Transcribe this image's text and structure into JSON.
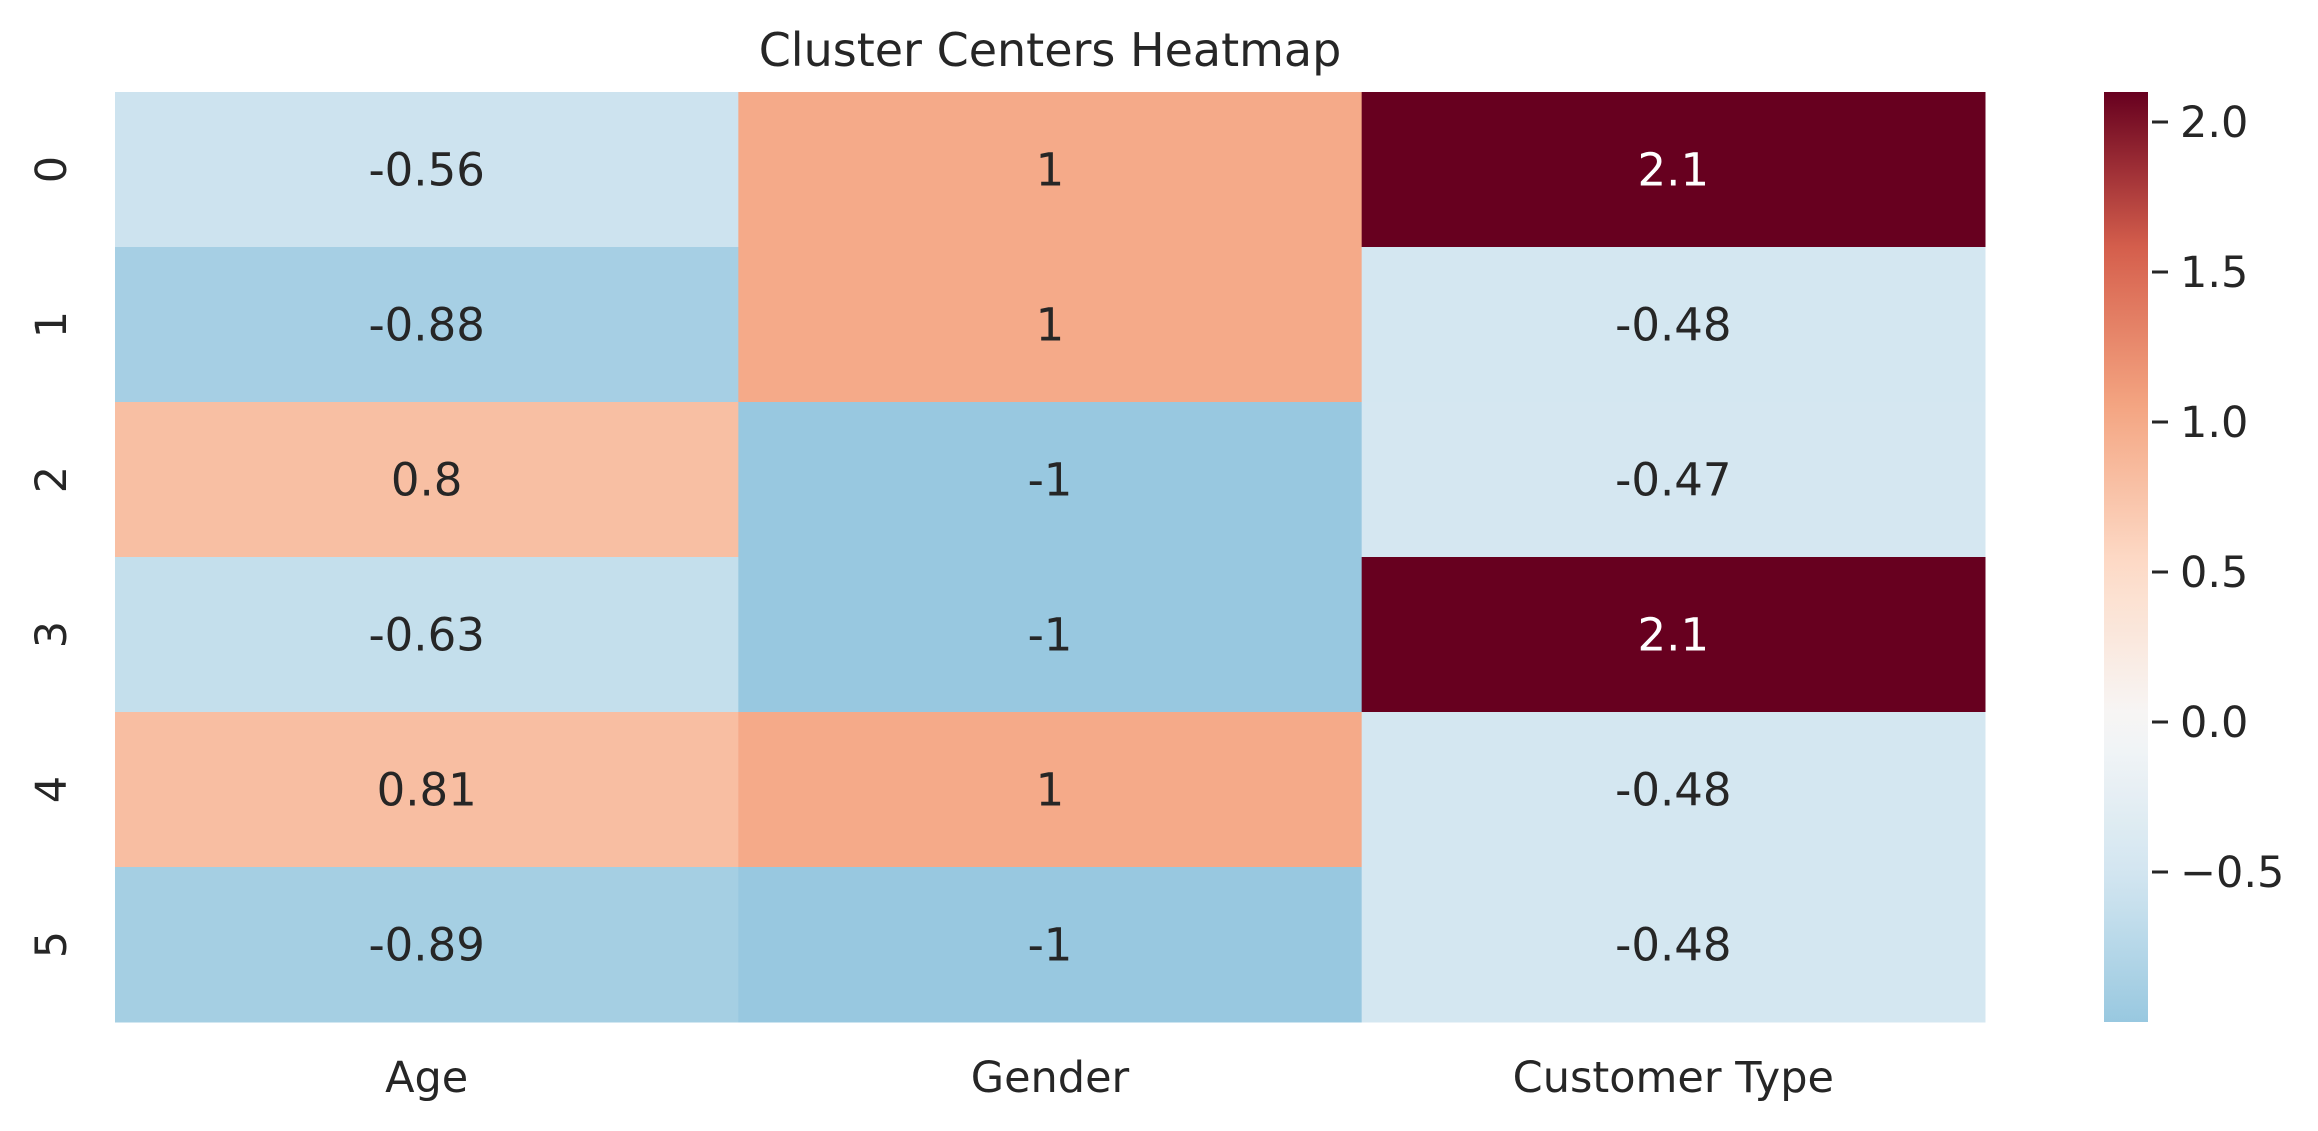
{
  "chart_data": {
    "type": "heatmap",
    "title": "Cluster Centers Heatmap",
    "xlabel": "",
    "ylabel": "",
    "columns": [
      "Age",
      "Gender",
      "Customer Type"
    ],
    "rows": [
      "0",
      "1",
      "2",
      "3",
      "4",
      "5"
    ],
    "values": [
      [
        -0.56,
        1.0,
        2.1
      ],
      [
        -0.88,
        1.0,
        -0.48
      ],
      [
        0.8,
        -1.0,
        -0.47
      ],
      [
        -0.63,
        -1.0,
        2.1
      ],
      [
        0.81,
        1.0,
        -0.48
      ],
      [
        -0.89,
        -1.0,
        -0.48
      ]
    ],
    "annotations": [
      [
        "-0.56",
        "1",
        "2.1"
      ],
      [
        "-0.88",
        "1",
        "-0.48"
      ],
      [
        "0.8",
        "-1",
        "-0.47"
      ],
      [
        "-0.63",
        "-1",
        "2.1"
      ],
      [
        "0.81",
        "1",
        "-0.48"
      ],
      [
        "-0.89",
        "-1",
        "-0.48"
      ]
    ],
    "colormap": "RdBu_r",
    "center": 0,
    "vmin": -1.0,
    "vmax": 2.1,
    "colorbar_ticks": [
      2.0,
      1.5,
      1.0,
      0.5,
      0.0,
      -0.5
    ],
    "colorbar_tick_labels": [
      "2.0",
      "1.5",
      "1.0",
      "0.5",
      "0.0",
      "−0.5"
    ],
    "colorbar_position": "right",
    "grid": false
  }
}
